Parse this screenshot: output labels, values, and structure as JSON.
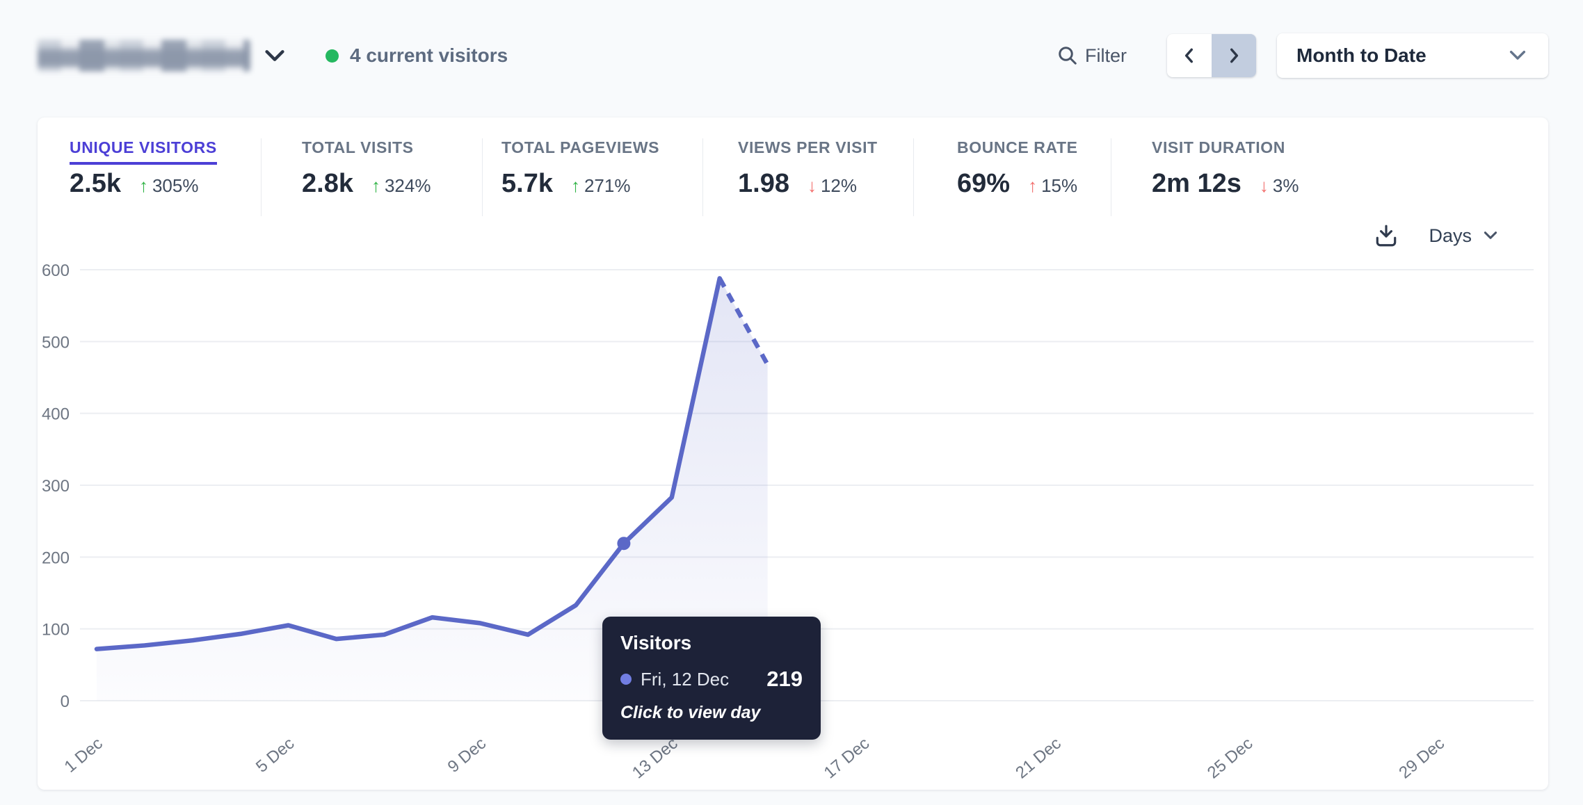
{
  "header": {
    "current_visitors": "4 current visitors",
    "filter_label": "Filter",
    "date_range": "Month to Date",
    "live_dot_color": "#25b860"
  },
  "stats": {
    "items": [
      {
        "label": "UNIQUE VISITORS",
        "value": "2.5k",
        "arrow": "↑",
        "delta": "305%",
        "arrow_color": "#2fb344",
        "active": true
      },
      {
        "label": "TOTAL VISITS",
        "value": "2.8k",
        "arrow": "↑",
        "delta": "324%",
        "arrow_color": "#2fb344"
      },
      {
        "label": "TOTAL PAGEVIEWS",
        "value": "5.7k",
        "arrow": "↑",
        "delta": "271%",
        "arrow_color": "#2fb344"
      },
      {
        "label": "VIEWS PER VISIT",
        "value": "1.98",
        "arrow": "↓",
        "delta": "12%",
        "arrow_color": "#f26d6b"
      },
      {
        "label": "BOUNCE RATE",
        "value": "69%",
        "arrow": "↑",
        "delta": "15%",
        "arrow_color": "#f26d6b"
      },
      {
        "label": "VISIT DURATION",
        "value": "2m 12s",
        "arrow": "↓",
        "delta": "3%",
        "arrow_color": "#f26d6b"
      }
    ]
  },
  "toolbar": {
    "interval_label": "Days"
  },
  "chart_data": {
    "type": "line",
    "title": "Visitors",
    "xlabel": "",
    "ylabel": "",
    "x_unit": "day of December",
    "days": [
      1,
      2,
      3,
      4,
      5,
      6,
      7,
      8,
      9,
      10,
      11,
      12,
      13,
      14,
      15
    ],
    "dates": [
      "1 Dec",
      "2 Dec",
      "3 Dec",
      "4 Dec",
      "5 Dec",
      "6 Dec",
      "7 Dec",
      "8 Dec",
      "9 Dec",
      "10 Dec",
      "11 Dec",
      "12 Dec",
      "13 Dec",
      "14 Dec",
      "15 Dec"
    ],
    "series": [
      {
        "name": "Visitors",
        "values": [
          72,
          77,
          84,
          93,
          105,
          86,
          92,
          116,
          108,
          92,
          133,
          219,
          283,
          588,
          468
        ]
      }
    ],
    "dashed_from_index": 13,
    "highlight_index": 11,
    "x_domain_days": [
      1,
      31
    ],
    "x_tick_days": [
      1,
      5,
      9,
      13,
      17,
      21,
      25,
      29
    ],
    "x_tick_labels": [
      "1 Dec",
      "5 Dec",
      "9 Dec",
      "13 Dec",
      "17 Dec",
      "21 Dec",
      "25 Dec",
      "29 Dec"
    ],
    "ylim": [
      0,
      600
    ],
    "yticks": [
      0,
      100,
      200,
      300,
      400,
      500,
      600
    ],
    "grid": "horizontal",
    "legend": "none",
    "line_color": "#5b68c7",
    "area_color": "#5b68c7",
    "tooltip": {
      "title": "Visitors",
      "date": "Fri, 12 Dec",
      "value": "219",
      "hint": "Click to view day"
    }
  }
}
